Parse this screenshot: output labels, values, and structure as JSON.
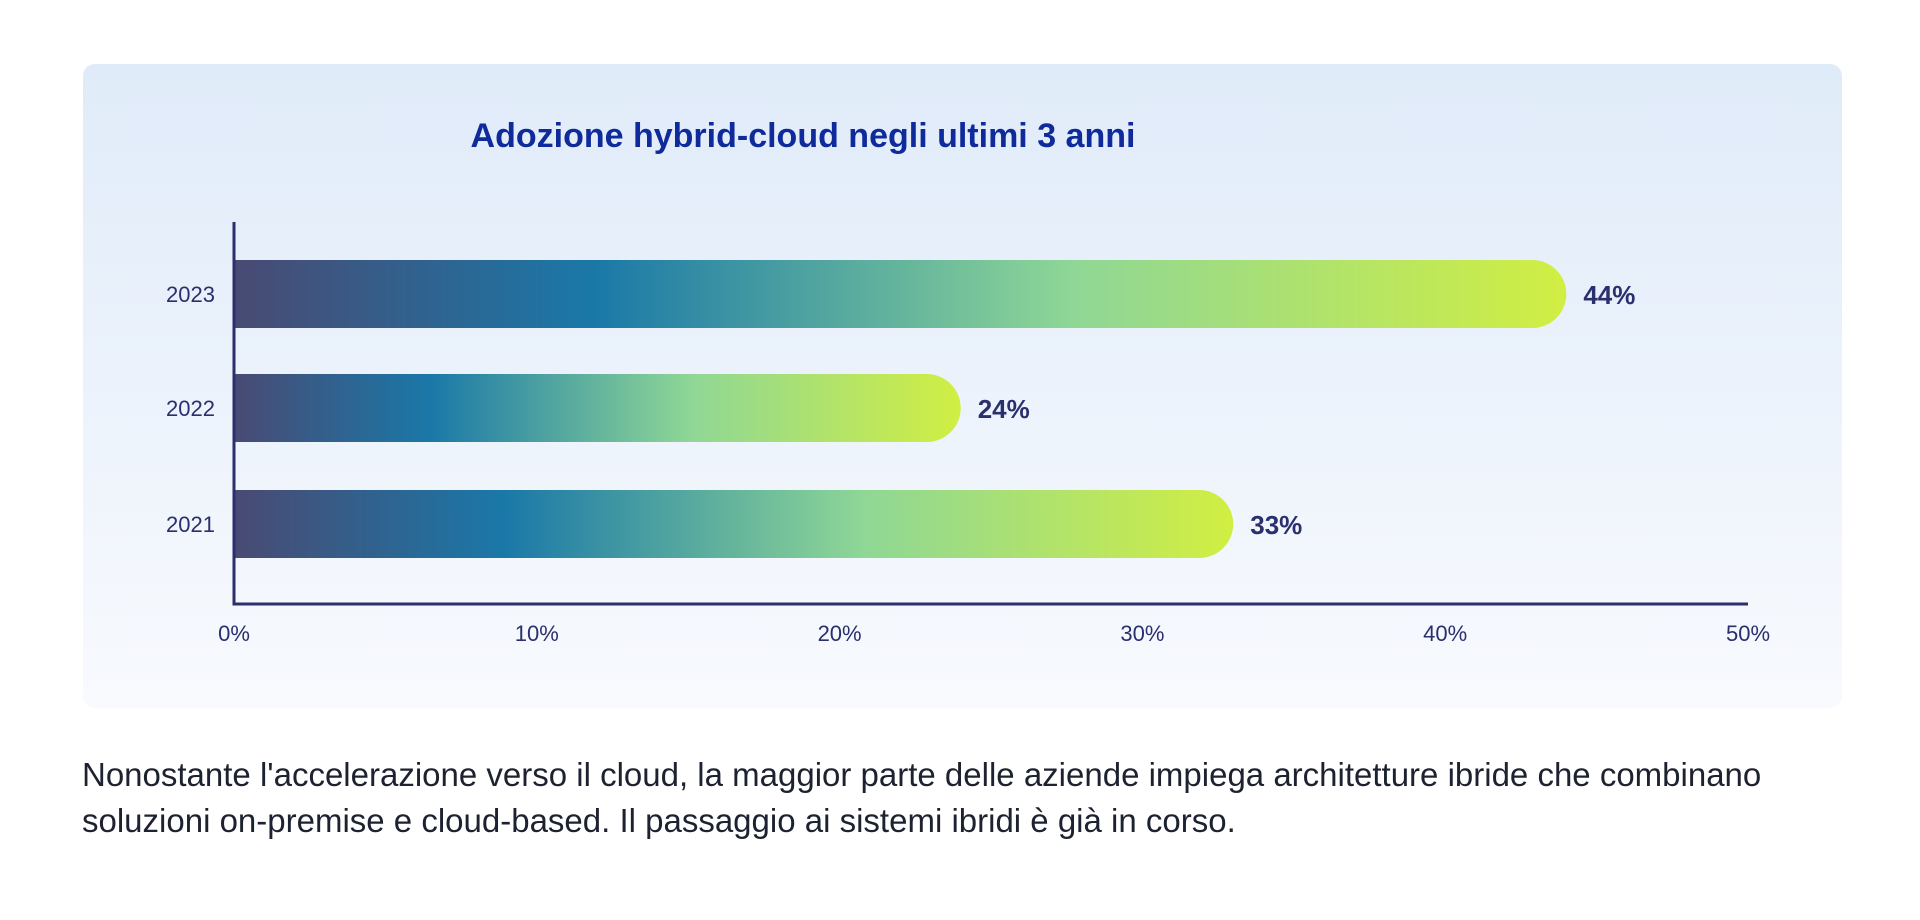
{
  "chart_data": {
    "type": "bar",
    "orientation": "horizontal",
    "title": "Adozione hybrid-cloud negli ultimi 3 anni",
    "categories": [
      "2023",
      "2022",
      "2021"
    ],
    "values": [
      44,
      24,
      33
    ],
    "value_labels": [
      "44%",
      "24%",
      "33%"
    ],
    "x_ticks": [
      "0%",
      "10%",
      "20%",
      "30%",
      "40%",
      "50%"
    ],
    "xlim": [
      0,
      50
    ],
    "xlabel": "",
    "ylabel": "",
    "grid": false,
    "colors": {
      "title": "#0f2a9b",
      "axis": "#2a2f6e",
      "label": "#2a2f6e",
      "bar_gradient": [
        "#494a73",
        "#1a78a8",
        "#8fd796",
        "#d1ee42"
      ]
    }
  },
  "caption": "Nonostante l'accelerazione verso il cloud, la maggior parte delle aziende impiega architetture ibride che combinano soluzioni on-premise e cloud-based. Il passaggio ai sistemi ibridi è già in corso."
}
